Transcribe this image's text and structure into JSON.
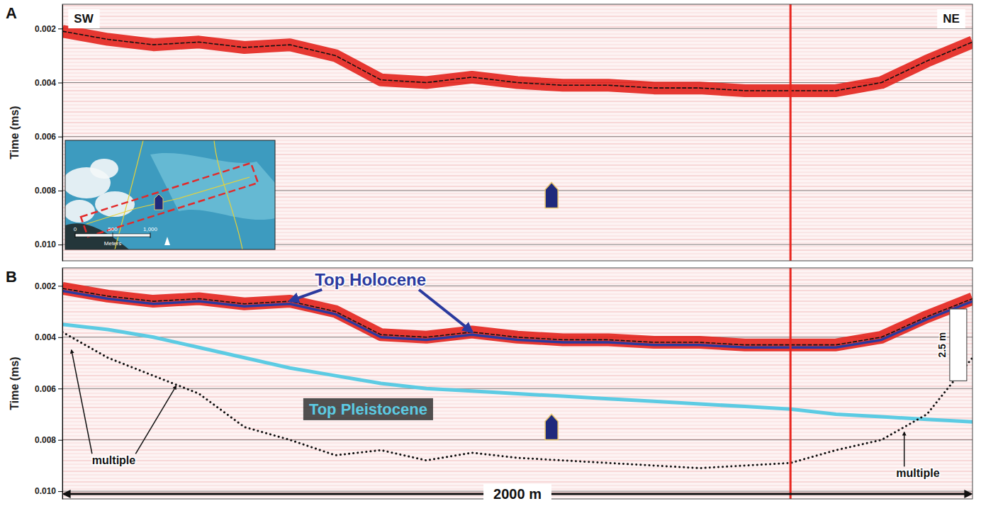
{
  "chart_data": [
    {
      "type": "line",
      "panel": "A",
      "y_label": "Time (ms)",
      "direction_labels": [
        "SW",
        "NE"
      ],
      "x": [
        0,
        100,
        200,
        300,
        400,
        500,
        600,
        700,
        800,
        900,
        1000,
        1100,
        1200,
        1300,
        1400,
        1500,
        1600,
        1700,
        1800,
        1900,
        2000
      ],
      "xlim": [
        0,
        2000
      ],
      "ylim": [
        0.0011,
        0.0106
      ],
      "yticks": [
        0.002,
        0.004,
        0.006,
        0.008,
        {
          "value": 0.01,
          "label": "0.010"
        }
      ],
      "grid": true,
      "tick_labels": "y",
      "series": [
        {
          "color": "#e3241d",
          "line_style": "band",
          "values": [
            0.0021,
            0.0024,
            0.0026,
            0.0025,
            0.0027,
            0.0026,
            0.003,
            0.0039,
            0.004,
            0.0038,
            0.004,
            0.0041,
            0.0041,
            0.0042,
            0.0042,
            0.0043,
            0.0043,
            0.0043,
            0.004,
            0.0032,
            0.0025
          ]
        }
      ],
      "vertical_line": {
        "x": 1600,
        "color": "#e8261f"
      },
      "pointer": {
        "x": 1075,
        "y": 0.0077
      },
      "inset": {
        "scale_ticks": [
          0,
          500,
          {
            "value": 1000,
            "label": "1,000"
          }
        ],
        "scale_unit": "Meters"
      }
    },
    {
      "type": "line",
      "panel": "B",
      "y_label": "Time (ms)",
      "x": [
        0,
        100,
        200,
        300,
        400,
        500,
        600,
        700,
        800,
        900,
        1000,
        1100,
        1200,
        1300,
        1400,
        1500,
        1600,
        1700,
        1800,
        1900,
        2000
      ],
      "xlim": [
        0,
        2000
      ],
      "ylim": [
        0.0013,
        0.0103
      ],
      "yticks": [
        0.002,
        0.004,
        0.006,
        0.008,
        {
          "value": 0.01,
          "label": "0.010"
        }
      ],
      "grid": true,
      "tick_labels": "y",
      "series": [
        {
          "color": "#e3241d",
          "line_style": "band",
          "values": [
            0.0021,
            0.0024,
            0.0026,
            0.0025,
            0.0027,
            0.0026,
            0.003,
            0.0039,
            0.004,
            0.0038,
            0.004,
            0.0041,
            0.0041,
            0.0042,
            0.0042,
            0.0043,
            0.0043,
            0.0043,
            0.004,
            0.0032,
            0.0025
          ]
        },
        {
          "name": "Top Holocene",
          "color": "#2b3a9e",
          "line_style": "solid",
          "values": [
            0.0022,
            0.0025,
            0.0027,
            0.0026,
            0.0028,
            0.0027,
            0.0031,
            0.004,
            0.0041,
            0.0039,
            0.0041,
            0.0042,
            0.0042,
            0.0043,
            0.0043,
            0.0044,
            0.0044,
            0.0044,
            0.0041,
            0.0033,
            0.0026
          ],
          "label": {
            "x": 677,
            "y": 0.00175,
            "arrows_to": [
              500,
              900
            ]
          }
        },
        {
          "name": "Top Pleistocene",
          "color": "#5ccbe3",
          "line_style": "solid",
          "values": [
            0.0035,
            0.0037,
            0.004,
            0.0044,
            0.0048,
            0.0052,
            0.0055,
            0.0058,
            0.006,
            0.0061,
            0.0062,
            0.0063,
            0.0064,
            0.0065,
            0.0066,
            0.0067,
            0.0068,
            0.007,
            0.0071,
            0.0072,
            0.0073
          ],
          "label": {
            "x": 672,
            "y": 0.0068
          }
        },
        {
          "color": "#111111",
          "line_style": "dotted",
          "values": [
            0.0038,
            0.0048,
            0.0055,
            0.0062,
            0.0075,
            0.008,
            0.0086,
            0.0084,
            0.0088,
            0.0085,
            0.0087,
            0.0088,
            0.0089,
            0.009,
            0.0091,
            0.009,
            0.0089,
            0.0084,
            0.008,
            0.007,
            0.0048
          ]
        }
      ],
      "annotations": [
        {
          "text": "multiple",
          "x": 113,
          "y": 0.0088,
          "to": [
            [
              20,
              0.0045
            ],
            [
              250,
              0.0059
            ]
          ]
        },
        {
          "text": "multiple",
          "x": 1880,
          "y": 0.0093,
          "to": [
            [
              1850,
              0.0077
            ]
          ]
        }
      ],
      "scale_bar": {
        "label": "2.5 m",
        "x": 1950,
        "y0": 0.0029,
        "y1": 0.0057
      },
      "distance_label": "2000 m",
      "vertical_line": {
        "x": 1600,
        "color": "#e8261f"
      },
      "pointer": {
        "x": 1075,
        "y": 0.007
      }
    }
  ]
}
